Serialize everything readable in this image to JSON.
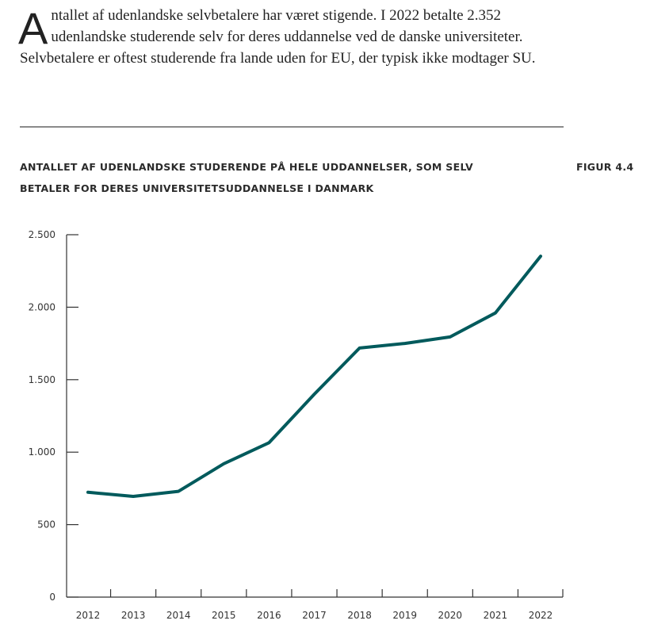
{
  "intro": {
    "dropcap": "A",
    "text": "ntallet af udenlandske selvbetalere har været stigende. I 2022 betalte 2.352 udenlandske studerende selv for deres uddannelse ved de danske universiteter. Selvbetalere er oftest studerende fra lande uden for EU, der typisk ikke modtager SU."
  },
  "figure": {
    "title": "ANTALLET AF UDENLANDSKE STUDERENDE PÅ HELE UDDANNELSER, SOM SELV BETALER FOR DERES UNIVERSITETSUDDANNELSE I DANMARK",
    "label": "FIGUR 4.4"
  },
  "chart_data": {
    "type": "line",
    "title": "ANTALLET AF UDENLANDSKE STUDERENDE PÅ HELE UDDANNELSER, SOM SELV BETALER FOR DERES UNIVERSITETSUDDANNELSE I DANMARK",
    "xlabel": "",
    "ylabel": "",
    "categories": [
      "2012",
      "2013",
      "2014",
      "2015",
      "2016",
      "2017",
      "2018",
      "2019",
      "2020",
      "2021",
      "2022"
    ],
    "series": [
      {
        "values": [
          723,
          695,
          730,
          920,
          1065,
          1400,
          1718,
          1750,
          1795,
          1960,
          2352
        ],
        "color": "#005a5c"
      }
    ],
    "ylim": [
      0,
      2500
    ],
    "yticks": [
      0,
      500,
      1000,
      1500,
      2000,
      2500
    ],
    "ytick_labels": [
      "0",
      "500",
      "1.000",
      "1.500",
      "2.000",
      "2.500"
    ],
    "grid": false,
    "legend": "none"
  }
}
